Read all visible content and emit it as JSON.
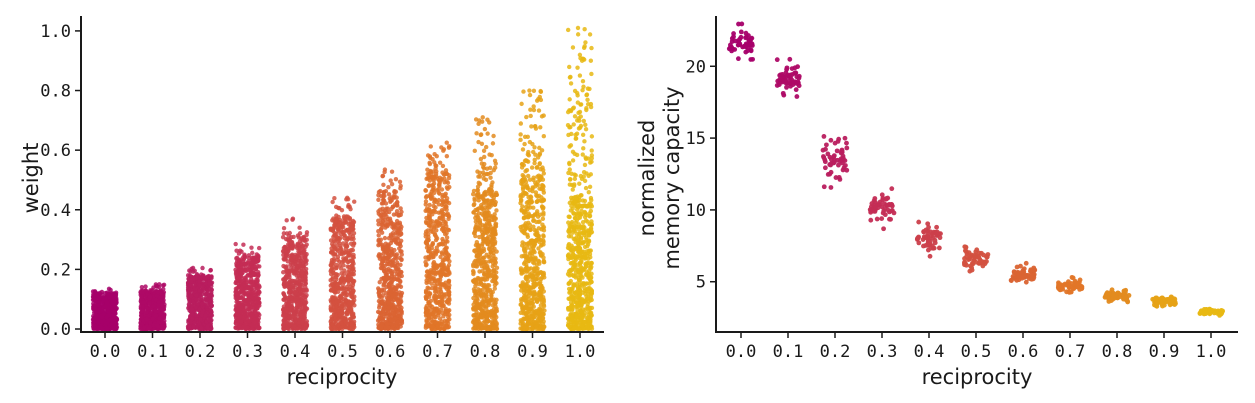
{
  "chart_data": [
    {
      "type": "scatter",
      "x": [
        0.0,
        0.1,
        0.2,
        0.3,
        0.4,
        0.5,
        0.6,
        0.7,
        0.8,
        0.9,
        1.0
      ],
      "x_tick_labels": [
        "0.0",
        "0.1",
        "0.2",
        "0.3",
        "0.4",
        "0.5",
        "0.6",
        "0.7",
        "0.8",
        "0.9",
        "1.0"
      ],
      "xlabel": "reciprocity",
      "ylabel": "weight",
      "ylim": [
        -0.01,
        1.05
      ],
      "y_ticks": [
        0.0,
        0.2,
        0.4,
        0.6,
        0.8,
        1.0
      ],
      "y_tick_labels": [
        "0.0",
        "0.2",
        "0.4",
        "0.6",
        "0.8",
        "1.0"
      ],
      "grid": false,
      "series": [
        {
          "values": {
            "dense_max": 0.12,
            "max": 0.135
          }
        },
        {
          "values": {
            "dense_max": 0.13,
            "max": 0.15
          }
        },
        {
          "values": {
            "dense_max": 0.18,
            "max": 0.205
          }
        },
        {
          "values": {
            "dense_max": 0.24,
            "max": 0.285
          }
        },
        {
          "values": {
            "dense_max": 0.3,
            "max": 0.37
          }
        },
        {
          "values": {
            "dense_max": 0.37,
            "max": 0.44
          }
        },
        {
          "values": {
            "dense_max": 0.44,
            "max": 0.535
          }
        },
        {
          "values": {
            "dense_max": 0.52,
            "max": 0.625
          }
        },
        {
          "values": {
            "dense_max": 0.45,
            "max": 0.71
          }
        },
        {
          "values": {
            "dense_max": 0.5,
            "max": 0.8
          }
        },
        {
          "values": {
            "dense_max": 0.41,
            "max": 1.01
          }
        }
      ]
    },
    {
      "type": "scatter",
      "x": [
        0.0,
        0.1,
        0.2,
        0.3,
        0.4,
        0.5,
        0.6,
        0.7,
        0.8,
        0.9,
        1.0
      ],
      "x_tick_labels": [
        "0.0",
        "0.1",
        "0.2",
        "0.3",
        "0.4",
        "0.5",
        "0.6",
        "0.7",
        "0.8",
        "0.9",
        "1.0"
      ],
      "xlabel": "reciprocity",
      "ylabel": [
        "normalized",
        "memory capacity"
      ],
      "ylim": [
        1.5,
        23.5
      ],
      "y_ticks": [
        5,
        10,
        15,
        20
      ],
      "y_tick_labels": [
        "5",
        "10",
        "15",
        "20"
      ],
      "grid": false,
      "series": [
        {
          "values": {
            "mean": 21.6,
            "spread": 0.6
          }
        },
        {
          "values": {
            "mean": 19.1,
            "spread": 0.5
          }
        },
        {
          "values": {
            "mean": 13.6,
            "spread": 0.7
          }
        },
        {
          "values": {
            "mean": 10.2,
            "spread": 0.5
          }
        },
        {
          "values": {
            "mean": 7.9,
            "spread": 0.45
          }
        },
        {
          "values": {
            "mean": 6.6,
            "spread": 0.35
          }
        },
        {
          "values": {
            "mean": 5.5,
            "spread": 0.3
          }
        },
        {
          "values": {
            "mean": 4.7,
            "spread": 0.22
          }
        },
        {
          "values": {
            "mean": 4.0,
            "spread": 0.18
          }
        },
        {
          "values": {
            "mean": 3.6,
            "spread": 0.15
          }
        },
        {
          "values": {
            "mean": 2.9,
            "spread": 0.1
          }
        }
      ]
    }
  ],
  "colors": [
    "#a6006a",
    "#ae0966",
    "#b91d5e",
    "#c42d55",
    "#cb3f4b",
    "#d35140",
    "#da6433",
    "#e17628",
    "#e38b1f",
    "#e6a216",
    "#e8b813"
  ]
}
